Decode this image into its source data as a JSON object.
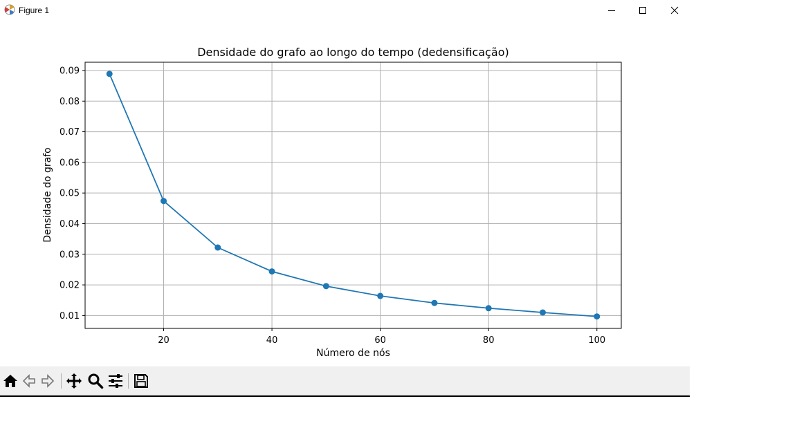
{
  "window": {
    "title": "Figure 1",
    "icon": "matplotlib-icon",
    "controls": [
      "minimize-icon",
      "maximize-icon",
      "close-icon"
    ]
  },
  "toolbar": {
    "buttons": [
      "home-icon",
      "back-arrow-icon",
      "forward-arrow-icon",
      "pan-icon",
      "zoom-icon",
      "configure-subplots-icon",
      "save-icon"
    ]
  },
  "chart_data": {
    "type": "line",
    "title": "Densidade do grafo ao longo do tempo (dedensificação)",
    "xlabel": "Número de nós",
    "ylabel": "Densidade do grafo",
    "x": [
      10,
      20,
      30,
      40,
      50,
      60,
      70,
      80,
      90,
      100
    ],
    "series": [
      {
        "values": [
          0.0889,
          0.0474,
          0.0322,
          0.0244,
          0.0196,
          0.0164,
          0.0141,
          0.0124,
          0.011,
          0.0097
        ],
        "color": "#1f77b4",
        "marker": "circle"
      }
    ],
    "xlim": [
      5.5,
      104.5
    ],
    "ylim": [
      0.0058,
      0.0927
    ],
    "xticks": [
      20,
      40,
      60,
      80,
      100
    ],
    "yticks": [
      0.01,
      0.02,
      0.03,
      0.04,
      0.05,
      0.06,
      0.07,
      0.08,
      0.09
    ],
    "ytick_labels": [
      "0.01",
      "0.02",
      "0.03",
      "0.04",
      "0.05",
      "0.06",
      "0.07",
      "0.08",
      "0.09"
    ],
    "grid": true
  }
}
